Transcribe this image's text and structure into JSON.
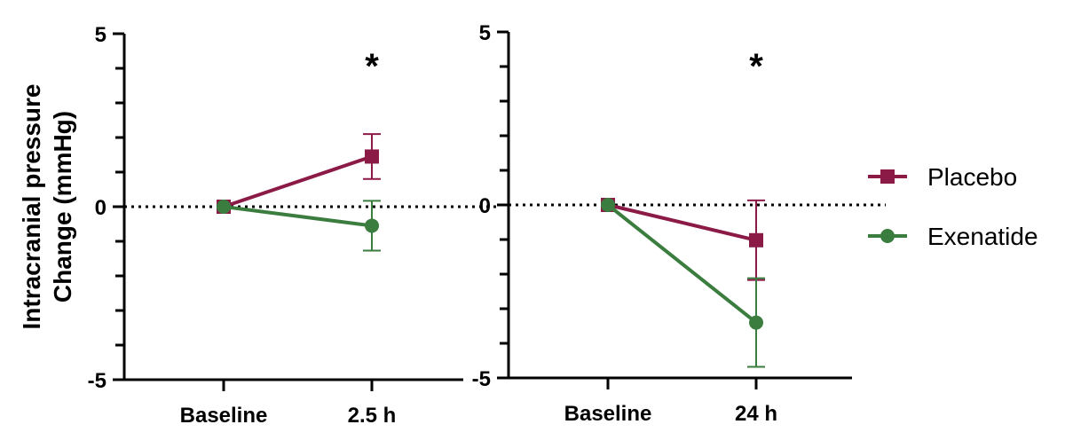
{
  "chart_data": {
    "type": "line",
    "ylabel_lines": [
      "Intracranial pressure",
      "Change (mmHg)"
    ],
    "ylim": [
      -5,
      5
    ],
    "yticks": [
      "5",
      "0",
      "-5"
    ],
    "grid": false,
    "legend_position": "right",
    "colors": {
      "Placebo": "#8b1a47",
      "Exenatide": "#3a7d3f"
    },
    "legend": [
      {
        "name": "Placebo",
        "marker": "square",
        "color": "#8b1a47"
      },
      {
        "name": "Exenatide",
        "marker": "circle",
        "color": "#3a7d3f"
      }
    ],
    "panels": [
      {
        "categories": [
          "Baseline",
          "2.5 h"
        ],
        "annotation": "*",
        "series": [
          {
            "name": "Placebo",
            "marker": "square",
            "values": [
              0,
              1.45
            ],
            "err": [
              0,
              0.65
            ]
          },
          {
            "name": "Exenatide",
            "marker": "circle",
            "values": [
              0,
              -0.55
            ],
            "err": [
              0,
              0.72
            ]
          }
        ]
      },
      {
        "categories": [
          "Baseline",
          "24 h"
        ],
        "annotation": "*",
        "series": [
          {
            "name": "Placebo",
            "marker": "square",
            "values": [
              0,
              -1.02
            ],
            "err": [
              0,
              1.15
            ]
          },
          {
            "name": "Exenatide",
            "marker": "circle",
            "values": [
              0,
              -3.4
            ],
            "err": [
              0,
              1.28
            ]
          }
        ]
      }
    ]
  }
}
